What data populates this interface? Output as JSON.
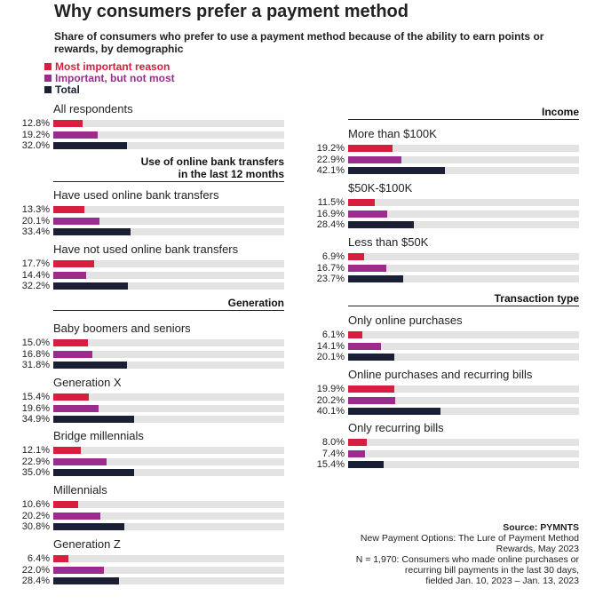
{
  "chart_data": {
    "type": "bar",
    "title": "Why consumers prefer a payment method",
    "subtitle": "Share of consumers who prefer to use a payment method because of the ability to earn points or rewards, by demographic",
    "legend": [
      {
        "name": "Most important reason",
        "color": "#d81e3e"
      },
      {
        "name": "Important, but not most",
        "color": "#9b2c8e"
      },
      {
        "name": "Total",
        "color": "#1a1f33"
      }
    ],
    "value_unit": "%",
    "xlim": [
      0,
      100
    ],
    "left_column": [
      {
        "section": "",
        "groups": [
          {
            "label": "All respondents",
            "values": [
              12.8,
              19.2,
              32.0
            ],
            "labels": [
              "12.8%",
              "19.2%",
              "32.0%"
            ]
          }
        ]
      },
      {
        "section": "Use of online bank transfers in the last 12 months",
        "section_lines": [
          "Use of online bank transfers",
          "in the last 12 months"
        ],
        "groups": [
          {
            "label": "Have used online bank transfers",
            "values": [
              13.3,
              20.1,
              33.4
            ],
            "labels": [
              "13.3%",
              "20.1%",
              "33.4%"
            ]
          },
          {
            "label": "Have not used online bank transfers",
            "values": [
              17.7,
              14.4,
              32.2
            ],
            "labels": [
              "17.7%",
              "14.4%",
              "32.2%"
            ]
          }
        ]
      },
      {
        "section": "Generation",
        "section_lines": [
          "Generation"
        ],
        "groups": [
          {
            "label": "Baby boomers and seniors",
            "values": [
              15.0,
              16.8,
              31.8
            ],
            "labels": [
              "15.0%",
              "16.8%",
              "31.8%"
            ]
          },
          {
            "label": "Generation X",
            "values": [
              15.4,
              19.6,
              34.9
            ],
            "labels": [
              "15.4%",
              "19.6%",
              "34.9%"
            ]
          },
          {
            "label": "Bridge millennials",
            "values": [
              12.1,
              22.9,
              35.0
            ],
            "labels": [
              "12.1%",
              "22.9%",
              "35.0%"
            ]
          },
          {
            "label": "Millennials",
            "values": [
              10.6,
              20.2,
              30.8
            ],
            "labels": [
              "10.6%",
              "20.2%",
              "30.8%"
            ]
          },
          {
            "label": "Generation Z",
            "values": [
              6.4,
              22.0,
              28.4
            ],
            "labels": [
              "6.4%",
              "22.0%",
              "28.4%"
            ]
          }
        ]
      }
    ],
    "right_column": [
      {
        "section": "Income",
        "section_lines": [
          "Income"
        ],
        "groups": [
          {
            "label": "More than $100K",
            "values": [
              19.2,
              22.9,
              42.1
            ],
            "labels": [
              "19.2%",
              "22.9%",
              "42.1%"
            ]
          },
          {
            "label": "$50K-$100K",
            "values": [
              11.5,
              16.9,
              28.4
            ],
            "labels": [
              "11.5%",
              "16.9%",
              "28.4%"
            ]
          },
          {
            "label": "Less than $50K",
            "values": [
              6.9,
              16.7,
              23.7
            ],
            "labels": [
              "6.9%",
              "16.7%",
              "23.7%"
            ]
          }
        ]
      },
      {
        "section": "Transaction type",
        "section_lines": [
          "Transaction type"
        ],
        "groups": [
          {
            "label": "Only online purchases",
            "values": [
              6.1,
              14.1,
              20.1
            ],
            "labels": [
              "6.1%",
              "14.1%",
              "20.1%"
            ]
          },
          {
            "label": "Online purchases and recurring bills",
            "values": [
              19.9,
              20.2,
              40.1
            ],
            "labels": [
              "19.9%",
              "20.2%",
              "40.1%"
            ]
          },
          {
            "label": "Only recurring bills",
            "values": [
              8.0,
              7.4,
              15.4
            ],
            "labels": [
              "8.0%",
              "7.4%",
              "15.4%"
            ]
          }
        ]
      }
    ]
  },
  "source": {
    "title": "Source: PYMNTS",
    "lines": [
      "New Payment Options: The Lure of Payment Method",
      "Rewards, May 2023",
      "N = 1,970: Consumers who made online purchases or",
      "recurring bill payments in the last 30 days,",
      "fielded Jan. 10, 2023 – Jan. 13, 2023"
    ]
  }
}
